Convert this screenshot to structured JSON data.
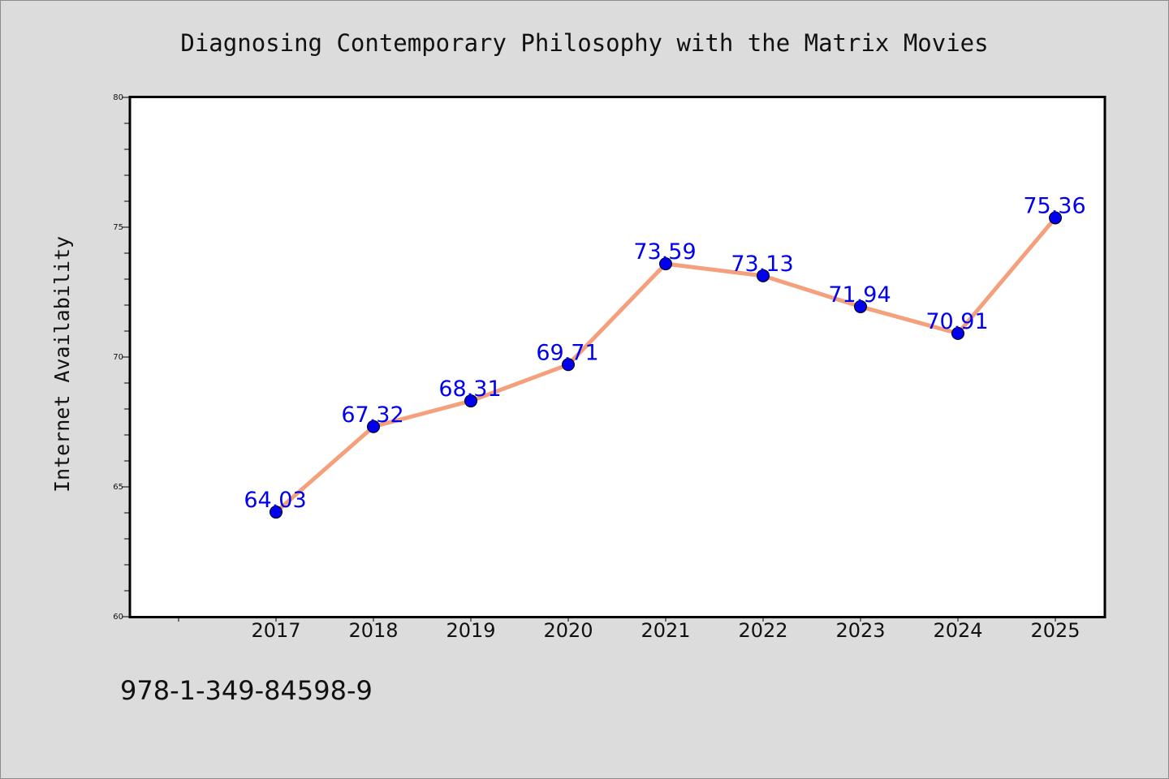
{
  "chart_data": {
    "type": "line",
    "title": "Diagnosing Contemporary Philosophy with the Matrix Movies",
    "xlabel": "",
    "ylabel": "Internet Availability",
    "categories": [
      "2017",
      "2018",
      "2019",
      "2020",
      "2021",
      "2022",
      "2023",
      "2024",
      "2025"
    ],
    "values": [
      64.03,
      67.32,
      68.31,
      69.71,
      73.59,
      73.13,
      71.94,
      70.91,
      75.36
    ],
    "data_labels": [
      "64.03",
      "67.32",
      "68.31",
      "69.71",
      "73.59",
      "73.13",
      "71.94",
      "70.91",
      "75.36"
    ],
    "ylim": [
      60,
      80
    ],
    "yticks": [
      60,
      65,
      70,
      75,
      80
    ],
    "ytick_labels": [
      "60",
      "65",
      "70",
      "75",
      "80"
    ],
    "grid": false,
    "legend": "none",
    "colors": {
      "line": "#f4a07c",
      "marker": "#0000ee",
      "data_label": "#0000ee",
      "background": "#dcdcdc",
      "plot_background": "#ffffff"
    }
  },
  "footnote": "978-1-349-84598-9"
}
